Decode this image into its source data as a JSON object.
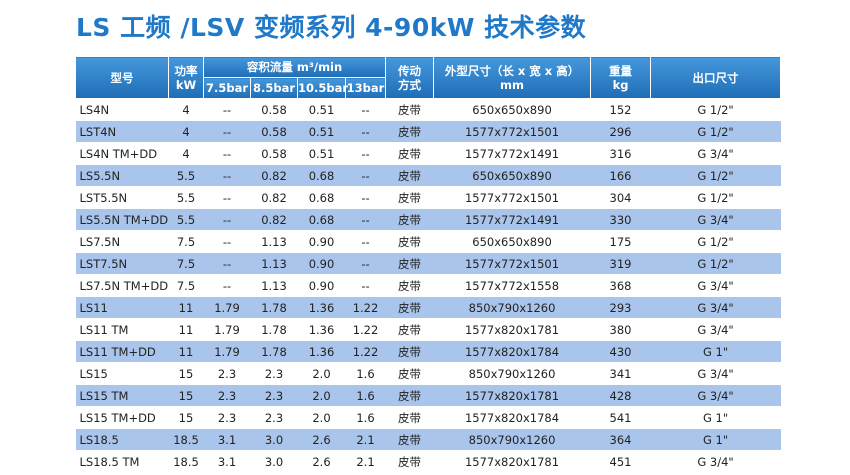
{
  "title": "LS 工频 /LSV 变频系列 4-90kW 技术参数",
  "table": {
    "header": {
      "model": "型号",
      "power": [
        "功率",
        "kW"
      ],
      "flow": "容积流量 m³/min",
      "pressures": [
        "7.5bar",
        "8.5bar",
        "10.5bar",
        "13bar"
      ],
      "drive": [
        "传动",
        "方式"
      ],
      "size": [
        "外型尺寸（长 x 宽 x 高）",
        "mm"
      ],
      "weight": [
        "重量",
        "kg"
      ],
      "outlet": "出口尺寸"
    },
    "rows": [
      [
        "LS4N",
        "4",
        "--",
        "0.58",
        "0.51",
        "--",
        "皮带",
        "650x650x890",
        "152",
        "G 1/2\""
      ],
      [
        "LST4N",
        "4",
        "--",
        "0.58",
        "0.51",
        "--",
        "皮带",
        "1577x772x1501",
        "296",
        "G 1/2\""
      ],
      [
        "LS4N TM+DD",
        "4",
        "--",
        "0.58",
        "0.51",
        "--",
        "皮带",
        "1577x772x1491",
        "316",
        "G 3/4\""
      ],
      [
        "LS5.5N",
        "5.5",
        "--",
        "0.82",
        "0.68",
        "--",
        "皮带",
        "650x650x890",
        "166",
        "G 1/2\""
      ],
      [
        "LST5.5N",
        "5.5",
        "--",
        "0.82",
        "0.68",
        "--",
        "皮带",
        "1577x772x1501",
        "304",
        "G 1/2\""
      ],
      [
        "LS5.5N TM+DD",
        "5.5",
        "--",
        "0.82",
        "0.68",
        "--",
        "皮带",
        "1577x772x1491",
        "330",
        "G 3/4\""
      ],
      [
        "LS7.5N",
        "7.5",
        "--",
        "1.13",
        "0.90",
        "--",
        "皮带",
        "650x650x890",
        "175",
        "G 1/2\""
      ],
      [
        "LST7.5N",
        "7.5",
        "--",
        "1.13",
        "0.90",
        "--",
        "皮带",
        "1577x772x1501",
        "319",
        "G 1/2\""
      ],
      [
        "LS7.5N TM+DD",
        "7.5",
        "--",
        "1.13",
        "0.90",
        "--",
        "皮带",
        "1577x772x1558",
        "368",
        "G 3/4\""
      ],
      [
        "LS11",
        "11",
        "1.79",
        "1.78",
        "1.36",
        "1.22",
        "皮带",
        "850x790x1260",
        "293",
        "G 3/4\""
      ],
      [
        "LS11 TM",
        "11",
        "1.79",
        "1.78",
        "1.36",
        "1.22",
        "皮带",
        "1577x820x1781",
        "380",
        "G 3/4\""
      ],
      [
        "LS11 TM+DD",
        "11",
        "1.79",
        "1.78",
        "1.36",
        "1.22",
        "皮带",
        "1577x820x1784",
        "430",
        "G 1\""
      ],
      [
        "LS15",
        "15",
        "2.3",
        "2.3",
        "2.0",
        "1.6",
        "皮带",
        "850x790x1260",
        "341",
        "G 3/4\""
      ],
      [
        "LS15 TM",
        "15",
        "2.3",
        "2.3",
        "2.0",
        "1.6",
        "皮带",
        "1577x820x1781",
        "428",
        "G 3/4\""
      ],
      [
        "LS15 TM+DD",
        "15",
        "2.3",
        "2.3",
        "2.0",
        "1.6",
        "皮带",
        "1577x820x1784",
        "541",
        "G 1\""
      ],
      [
        "LS18.5",
        "18.5",
        "3.1",
        "3.0",
        "2.6",
        "2.1",
        "皮带",
        "850x790x1260",
        "364",
        "G 1\""
      ],
      [
        "LS18.5 TM",
        "18.5",
        "3.1",
        "3.0",
        "2.6",
        "2.1",
        "皮带",
        "1577x820x1781",
        "451",
        "G 3/4\""
      ]
    ]
  }
}
